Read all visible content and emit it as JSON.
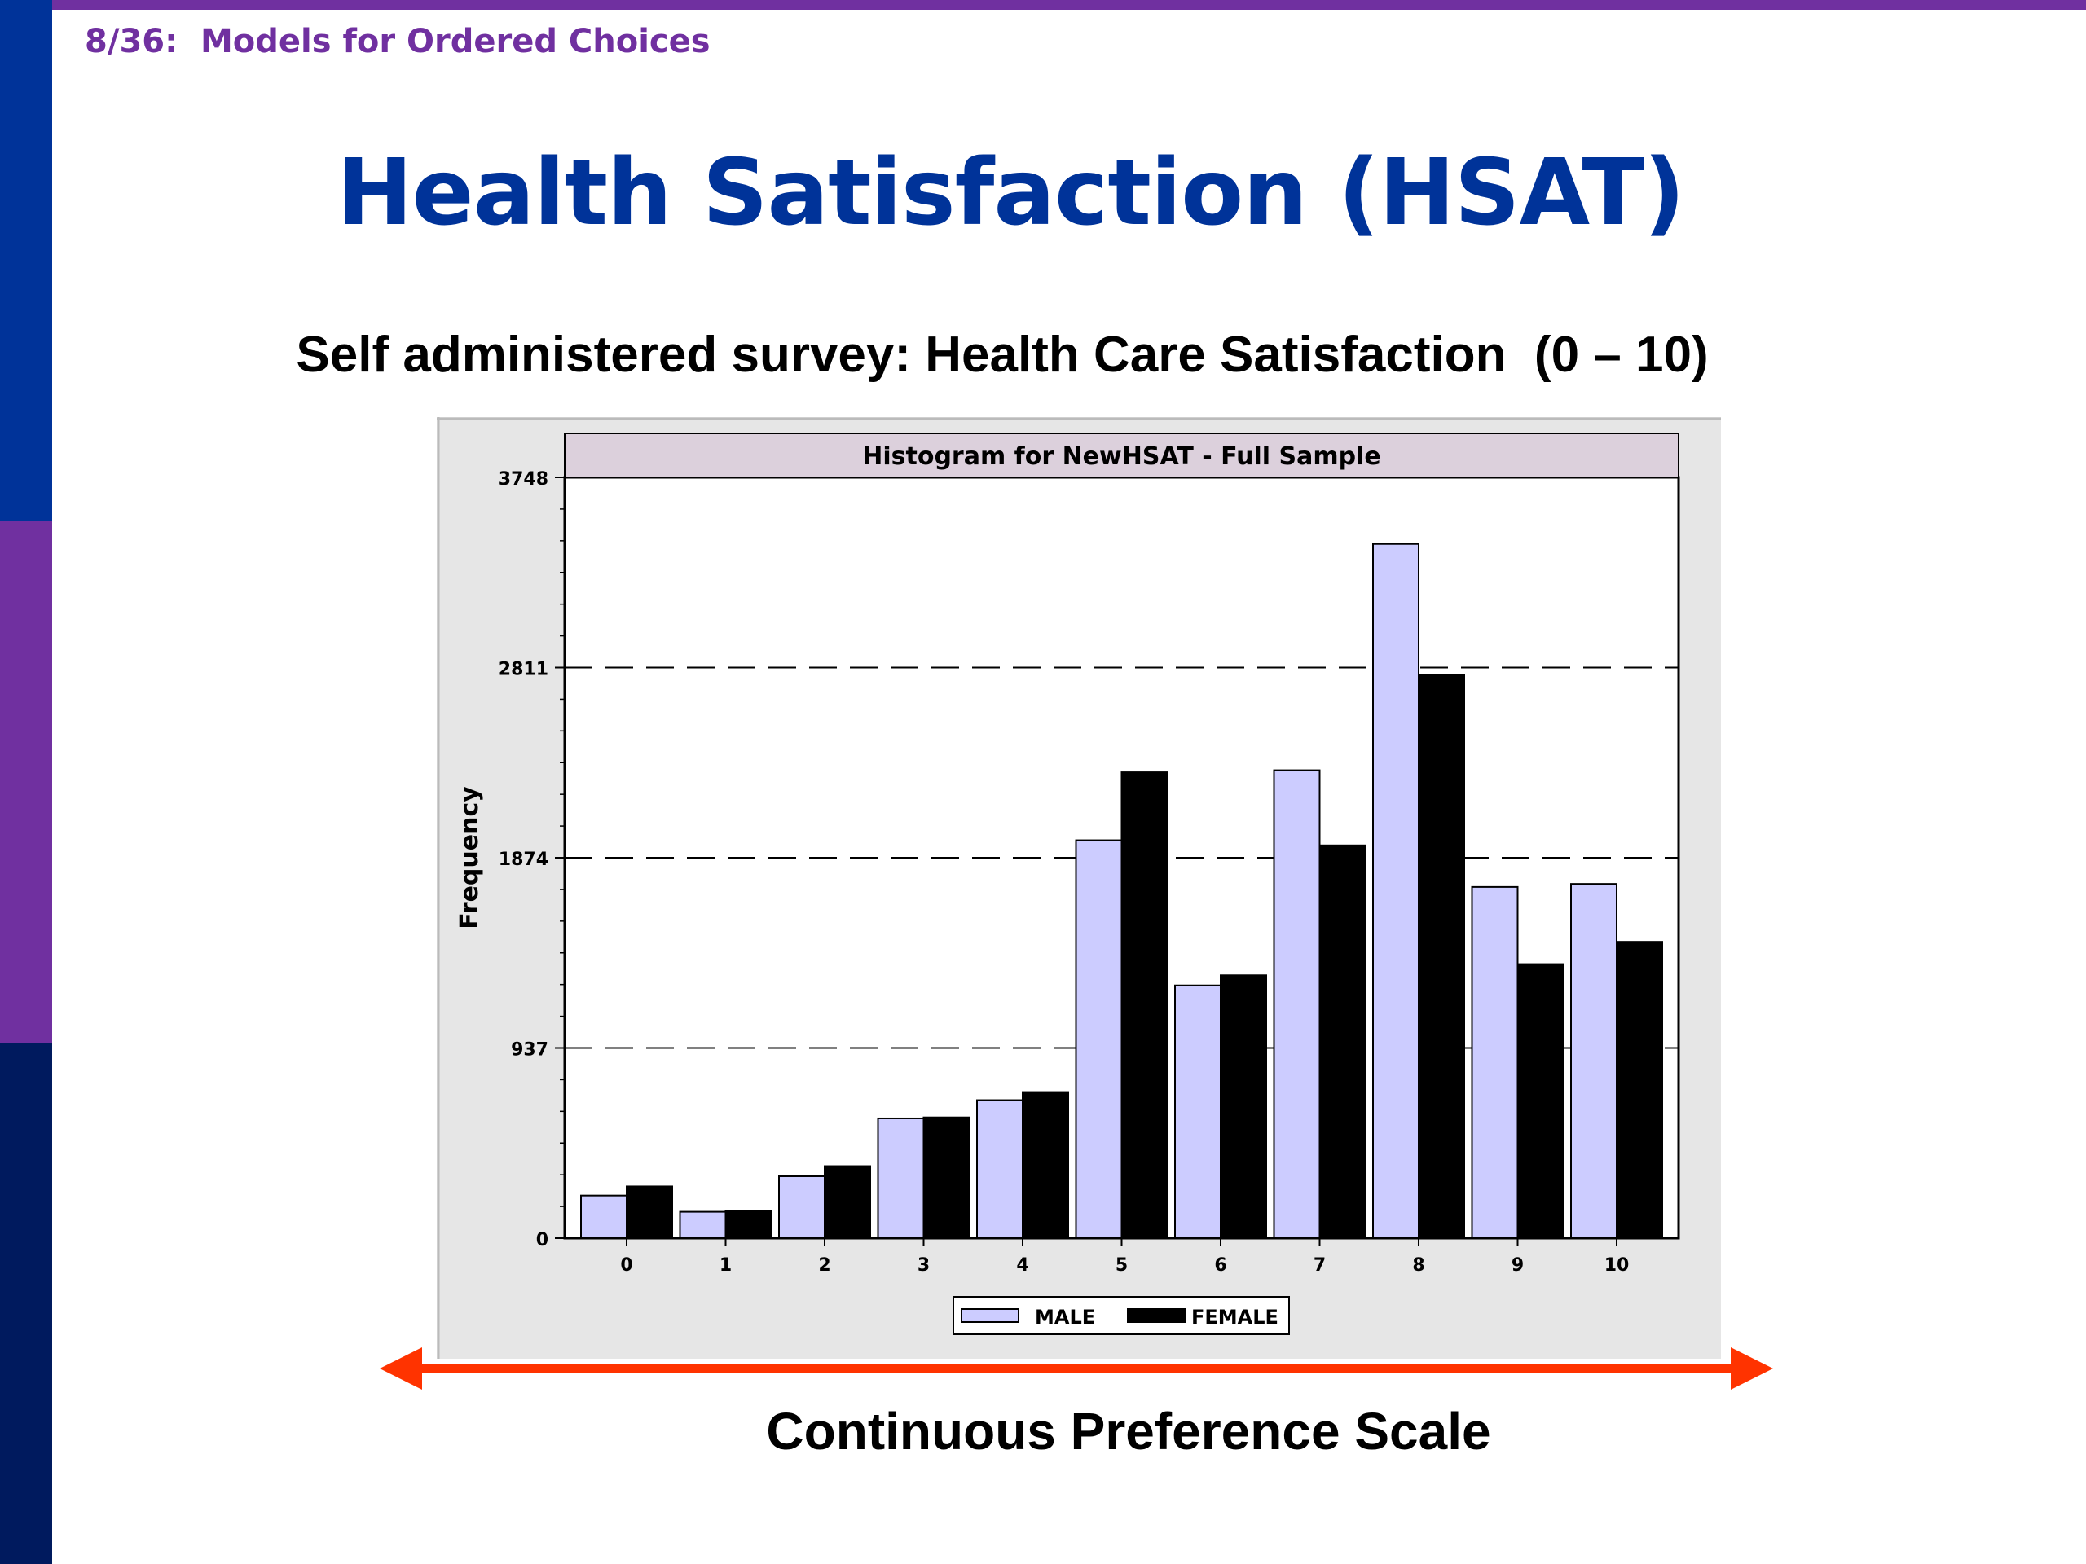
{
  "header": {
    "slide_label": "8/36:  Models for Ordered Choices"
  },
  "title": "Health Satisfaction (HSAT)",
  "subtitle": "Self administered survey: Health Care Satisfaction  (0 – 10)",
  "caption": "Continuous Preference Scale",
  "colors": {
    "accent": "#7030a0",
    "title": "#003399",
    "male_bar": "#ccccff",
    "female_bar": "#000000",
    "arrow": "#ff3300",
    "chart_panel": "#e6e6e6",
    "chart_title_band": "#dcd0dc"
  },
  "chart_data": {
    "type": "bar",
    "title": "Histogram for NewHSAT - Full Sample",
    "xlabel": "",
    "ylabel": "Frequency",
    "categories": [
      "0",
      "1",
      "2",
      "3",
      "4",
      "5",
      "6",
      "7",
      "8",
      "9",
      "10"
    ],
    "series": [
      {
        "name": "MALE",
        "values": [
          210,
          130,
          305,
          590,
          680,
          1960,
          1245,
          2305,
          3420,
          1730,
          1745
        ]
      },
      {
        "name": "FEMALE",
        "values": [
          255,
          135,
          355,
          595,
          720,
          2295,
          1295,
          1935,
          2775,
          1350,
          1460
        ]
      }
    ],
    "ylim": [
      0,
      3748
    ],
    "yticks": [
      0,
      937,
      1874,
      2811,
      3748
    ],
    "grid": "dashed horizontal",
    "legend": "bottom-center"
  }
}
